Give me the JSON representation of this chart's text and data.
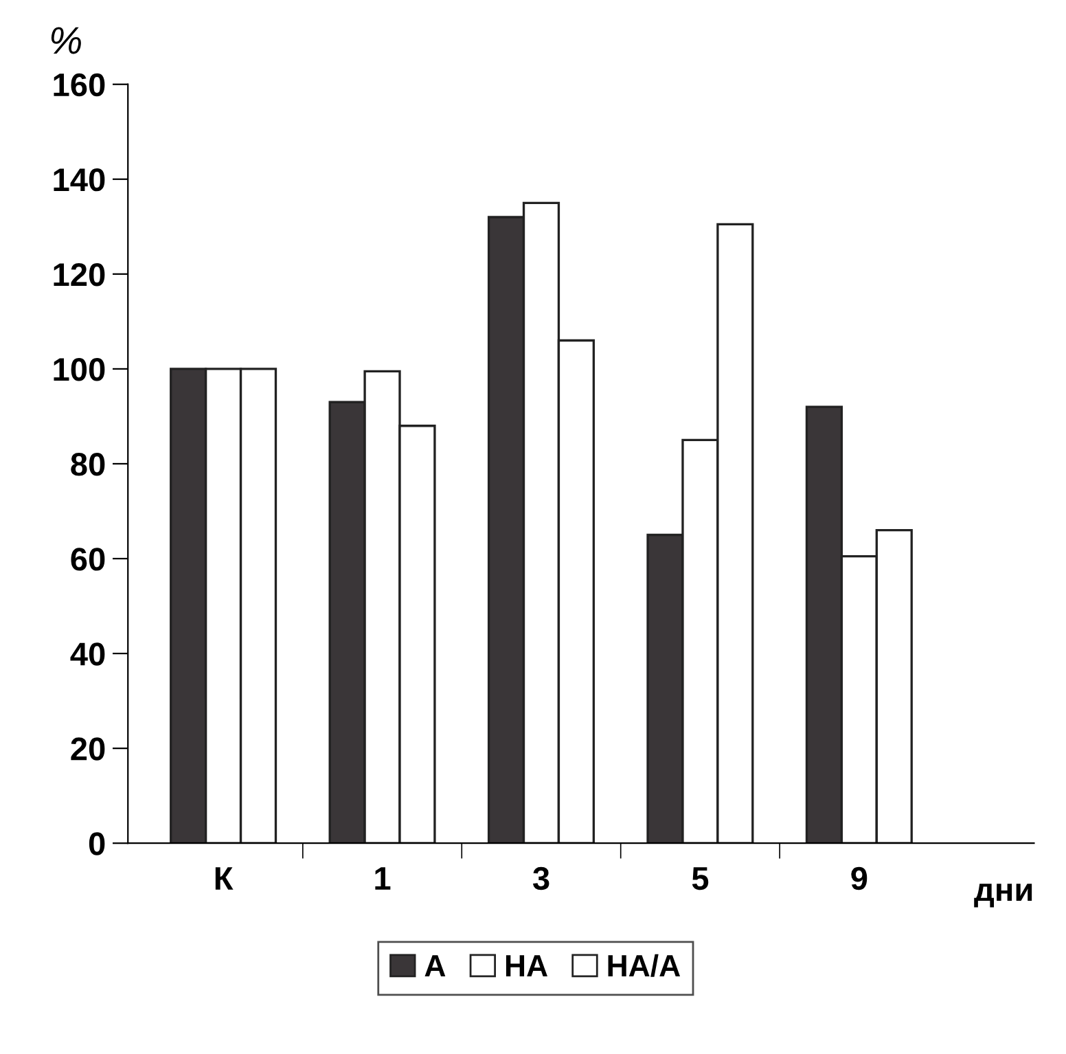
{
  "chart_data": {
    "type": "bar",
    "ylabel": "%",
    "xlabel": "дни",
    "categories": [
      "К",
      "1",
      "3",
      "5",
      "9"
    ],
    "series": [
      {
        "name": "А",
        "color": "#3a3638",
        "values": [
          100,
          93,
          132,
          65,
          92
        ]
      },
      {
        "name": "НА",
        "color": "#ffffff",
        "values": [
          100,
          99.5,
          135,
          85,
          60.5
        ]
      },
      {
        "name": "НА/А",
        "color": "#ffffff",
        "values": [
          100,
          88,
          106,
          130.5,
          66
        ]
      }
    ],
    "ylim": [
      0,
      160
    ],
    "yticks": [
      0,
      20,
      40,
      60,
      80,
      100,
      120,
      140,
      160
    ],
    "grid": false,
    "legend": "bottom"
  }
}
